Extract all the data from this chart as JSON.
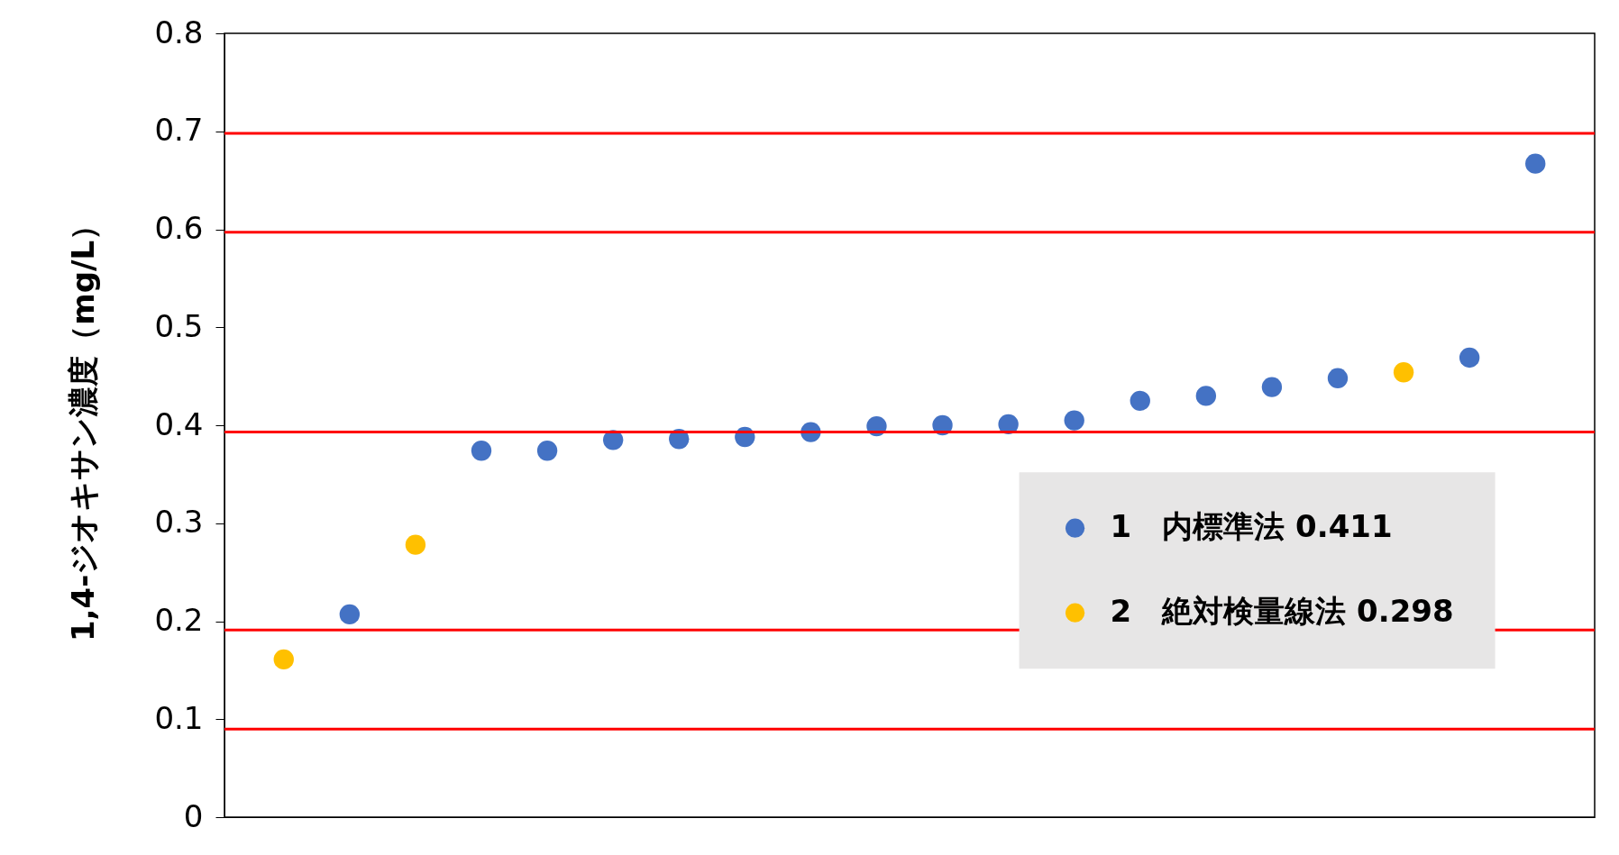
{
  "chart_data": {
    "type": "scatter",
    "ylabel": "1,4-ジオキサン濃度（mg/L）",
    "categories": [
      null,
      null,
      null,
      null,
      null,
      null,
      null,
      null,
      null,
      null,
      null,
      null,
      null,
      null,
      null,
      null,
      null,
      null,
      null,
      null
    ],
    "series": [
      {
        "name": "1　内標準法 0.411",
        "color": "#4472c4",
        "values": [
          null,
          0.207,
          null,
          0.374,
          0.374,
          0.385,
          0.386,
          0.388,
          0.393,
          0.399,
          0.4,
          0.401,
          0.405,
          0.425,
          0.43,
          0.439,
          0.448,
          null,
          0.469,
          0.667
        ]
      },
      {
        "name": "2　絶対検量線法 0.298",
        "color": "#ffc000",
        "values": [
          0.161,
          null,
          0.278,
          null,
          null,
          null,
          null,
          null,
          null,
          null,
          null,
          null,
          null,
          null,
          null,
          null,
          null,
          0.454,
          null,
          null
        ]
      }
    ],
    "ylim": [
      0,
      0.8
    ],
    "yticks": [
      0,
      0.1,
      0.2,
      0.3,
      0.4,
      0.5,
      0.6,
      0.7,
      0.8
    ],
    "ref_lines": [
      {
        "axis": "y",
        "value": 0.698,
        "color": "#ff0000"
      },
      {
        "axis": "y",
        "value": 0.597,
        "color": "#ff0000"
      },
      {
        "axis": "y",
        "value": 0.393,
        "color": "#ff0000"
      },
      {
        "axis": "y",
        "value": 0.191,
        "color": "#ff0000"
      },
      {
        "axis": "y",
        "value": 0.09,
        "color": "#ff0000"
      }
    ],
    "marker": "circle",
    "legend": "bottom right",
    "tick_labels": "y",
    "grid": false
  }
}
